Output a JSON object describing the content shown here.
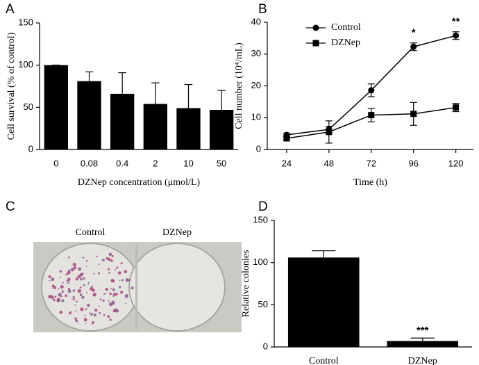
{
  "chart_data": [
    {
      "type": "bar",
      "panel": "A",
      "categories": [
        "0",
        "0.08",
        "0.4",
        "2",
        "10",
        "50"
      ],
      "values": [
        100,
        81,
        66,
        54,
        49,
        47
      ],
      "errors": [
        0,
        11,
        25,
        25,
        28,
        23
      ],
      "color": "#000000",
      "ylim": [
        0,
        150
      ],
      "yticks": [
        0,
        50,
        100,
        150
      ],
      "ylabel": "Cell survival (% of control)",
      "xlabel": "DZNep concentration (μmol/L)"
    },
    {
      "type": "line",
      "panel": "B",
      "x": [
        24,
        48,
        72,
        96,
        120
      ],
      "series": [
        {
          "name": "Control",
          "color": "#000000",
          "marker": "circle",
          "values": [
            4.6,
            6.3,
            18.6,
            32.3,
            35.8
          ],
          "errors": [
            0.5,
            1.0,
            2.0,
            1.2,
            1.2
          ]
        },
        {
          "name": "DZNep",
          "color": "#000000",
          "marker": "square",
          "values": [
            3.5,
            5.5,
            10.8,
            11.2,
            13.2
          ],
          "errors": [
            0.5,
            3.5,
            2.1,
            3.6,
            1.3
          ]
        }
      ],
      "annotations": [
        null,
        null,
        null,
        "*",
        "**"
      ],
      "xlim": [
        13,
        130
      ],
      "xticks": [
        24,
        48,
        72,
        96,
        120
      ],
      "ylim": [
        0,
        40
      ],
      "yticks": [
        0,
        10,
        20,
        30,
        40
      ],
      "legend": "upper left",
      "ylabel": "Cell number (10⁴/mL)",
      "xlabel": "Time (h)"
    },
    {
      "type": "photo",
      "panel": "C",
      "labels": [
        "Control",
        "DZNep"
      ]
    },
    {
      "type": "bar",
      "panel": "D",
      "categories": [
        "Control",
        "DZNep"
      ],
      "values": [
        106,
        7
      ],
      "errors": [
        8,
        3.5
      ],
      "annotations": [
        null,
        "***"
      ],
      "color": "#000000",
      "ylim": [
        0,
        150
      ],
      "yticks": [
        0,
        50,
        100,
        150
      ],
      "ylabel": "Relative colonies"
    }
  ]
}
